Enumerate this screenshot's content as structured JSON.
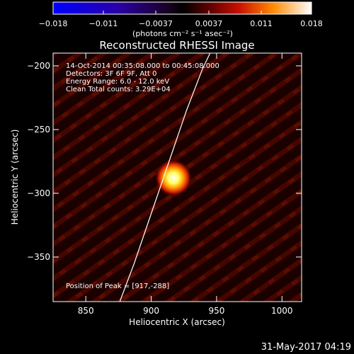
{
  "colorbar": {
    "tick_labels": [
      "−0.018",
      "−0.011",
      "−0.0037",
      "0.0037",
      "0.011",
      "0.018"
    ],
    "tick_values": [
      -0.018,
      -0.011,
      -0.0037,
      0.0037,
      0.011,
      0.018
    ],
    "range": [
      -0.018,
      0.018
    ],
    "unit_label": "(photons cm⁻² s⁻¹ asec⁻²)"
  },
  "title": "Reconstructed RHESSI Image",
  "info": {
    "line1": "14-Oct-2014 00:35:08.000 to 00:45:08.000",
    "line2": "Detectors: 3F 6F 9F, Att 0",
    "line3": "Energy Range: 6.0 - 12.0 keV",
    "line4": "Clean     Total counts: 3.29E+04",
    "peak": "Position of Peak = [917,-288]"
  },
  "axes": {
    "xlabel": "Heliocentric X (arcsec)",
    "ylabel": "Heliocentric Y (arcsec)",
    "xlim": [
      825,
      1015
    ],
    "ylim": [
      -385,
      -190
    ],
    "xticks": [
      850,
      900,
      950,
      1000
    ],
    "xtick_labels": [
      "850",
      "900",
      "950",
      "1000"
    ],
    "yticks": [
      -200,
      -250,
      -300,
      -350
    ],
    "ytick_labels": [
      "−200",
      "−250",
      "−300",
      "−350"
    ]
  },
  "source": {
    "peak_x": 917,
    "peak_y": -288
  },
  "limb_curve": [
    [
      876,
      -385
    ],
    [
      887,
      -355
    ],
    [
      897,
      -325
    ],
    [
      907,
      -295
    ],
    [
      917,
      -265
    ],
    [
      927,
      -235
    ],
    [
      939,
      -203
    ],
    [
      945,
      -190
    ]
  ],
  "timestamp": "31-May-2017 04:19",
  "colors": {
    "background": "#000000",
    "limb": "#ffffff",
    "text": "#ffffff"
  }
}
